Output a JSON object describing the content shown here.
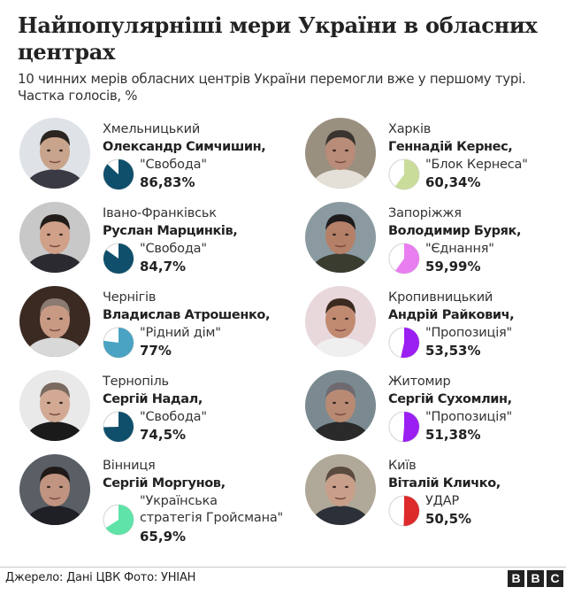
{
  "header": {
    "title": "Найпопулярніші мери України в обласних центрах",
    "subtitle": "10 чинних мерів обласних центрів України перемогли вже у першому турі. Частка голосів, %"
  },
  "footer": {
    "source": "Джерело: Дані ЦВК  Фото: УНІАН",
    "logo_letters": [
      "B",
      "B",
      "C"
    ]
  },
  "mayors": [
    {
      "city": "Хмельницький",
      "name": "Олександр Симчишин,",
      "party": "\"Свобода\"",
      "percent_label": "86,83%",
      "value": 86.83,
      "color": "#0f4f6b"
    },
    {
      "city": "Харків",
      "name": "Геннадій Кернес,",
      "party": "\"Блок Кернеса\"",
      "percent_label": "60,34%",
      "value": 60.34,
      "color": "#c9dc9a"
    },
    {
      "city": "Івано-Франківськ",
      "name": "Руслан Марцинків,",
      "party": "\"Свобода\"",
      "percent_label": "84,7%",
      "value": 84.7,
      "color": "#0f4f6b"
    },
    {
      "city": "Запоріжжя",
      "name": "Володимир Буряк,",
      "party": "\"Єднання\"",
      "percent_label": "59,99%",
      "value": 59.99,
      "color": "#e97ef0"
    },
    {
      "city": "Чернігів",
      "name": "Владислав Атрошенко,",
      "party": "\"Рідний дім\"",
      "percent_label": "77%",
      "value": 77,
      "color": "#4aa3c2"
    },
    {
      "city": "Кропивницький",
      "name": "Андрій Райкович,",
      "party": "\"Пропозиція\"",
      "percent_label": "53,53%",
      "value": 53.53,
      "color": "#9b1ff2"
    },
    {
      "city": "Тернопіль",
      "name": "Сергій Надал,",
      "party": "\"Свобода\"",
      "percent_label": "74,5%",
      "value": 74.5,
      "color": "#0f4f6b"
    },
    {
      "city": "Житомир",
      "name": "Сергій Сухомлин,",
      "party": "\"Пропозиція\"",
      "percent_label": "51,38%",
      "value": 51.38,
      "color": "#9b1ff2"
    },
    {
      "city": "Вінниця",
      "name": "Сергій Моргунов,",
      "party": "\"Українська\nстратегія Гройсмана\"",
      "percent_label": "65,9%",
      "value": 65.9,
      "color": "#5fe3a8"
    },
    {
      "city": "Київ",
      "name": "Віталій Кличко,",
      "party": "УДАР",
      "percent_label": "50,5%",
      "value": 50.5,
      "color": "#dd2b2b"
    }
  ],
  "chart_data": {
    "type": "pie",
    "title": "Найпопулярніші мери України в обласних центрах",
    "subtitle": "10 чинних мерів обласних центрів України перемогли вже у першому турі. Частка голосів, %",
    "categories": [
      "Хмельницький",
      "Харків",
      "Івано-Франківськ",
      "Запоріжжя",
      "Чернігів",
      "Кропивницький",
      "Тернопіль",
      "Житомир",
      "Вінниця",
      "Київ"
    ],
    "series": [
      {
        "name": "Частка голосів, %",
        "values": [
          86.83,
          60.34,
          84.7,
          59.99,
          77,
          53.53,
          74.5,
          51.38,
          65.9,
          50.5
        ]
      }
    ],
    "labels": [
      "Олександр Симчишин",
      "Геннадій Кернес",
      "Руслан Марцинків",
      "Володимир Буряк",
      "Владислав Атрошенко",
      "Андрій Райкович",
      "Сергій Надал",
      "Сергій Сухомлин",
      "Сергій Моргунов",
      "Віталій Кличко"
    ],
    "parties": [
      "Свобода",
      "Блок Кернеса",
      "Свобода",
      "Єднання",
      "Рідний дім",
      "Пропозиція",
      "Свобода",
      "Пропозиція",
      "Українська стратегія Гройсмана",
      "УДАР"
    ],
    "source": "Джерело: Дані ЦВК  Фото: УНІАН",
    "layout": "small multiples, 2 columns x 5 rows"
  }
}
